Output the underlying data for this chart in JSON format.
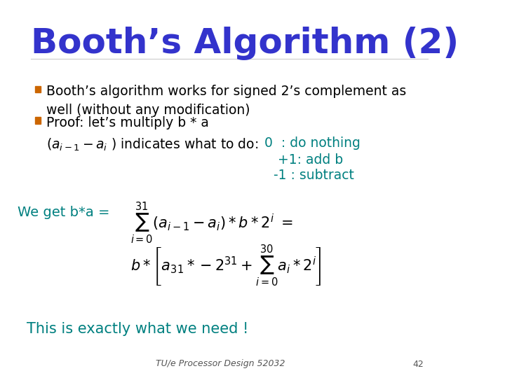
{
  "title": "Booth’s Algorithm (2)",
  "title_color": "#3333cc",
  "title_fontsize": 36,
  "bg_color": "#ffffff",
  "bullet_color": "#cc6600",
  "bullet1": "Booth’s algorithm works for signed 2’s complement as\nwell (without any modification)",
  "bullet2_line1": "Proof: let’s multiply b * a",
  "bullet2_line2": "(aᵢ₋₁ - aᵢ ) indicates what to do:",
  "side_note_color": "#008080",
  "side_note1": "0  : do nothing",
  "side_note2": "+1: add b",
  "side_note3": "-1 : subtract",
  "we_get_color": "#008080",
  "we_get_text": "We get b*a = ",
  "conclusion_color": "#008080",
  "conclusion": "This is exactly what we need !",
  "footer_text": "TU/e Processor Design 52032",
  "footer_page": "42",
  "footer_color": "#555555",
  "text_color": "#000000",
  "text_fontsize": 16,
  "bullet_marker_color": "#cc6600"
}
